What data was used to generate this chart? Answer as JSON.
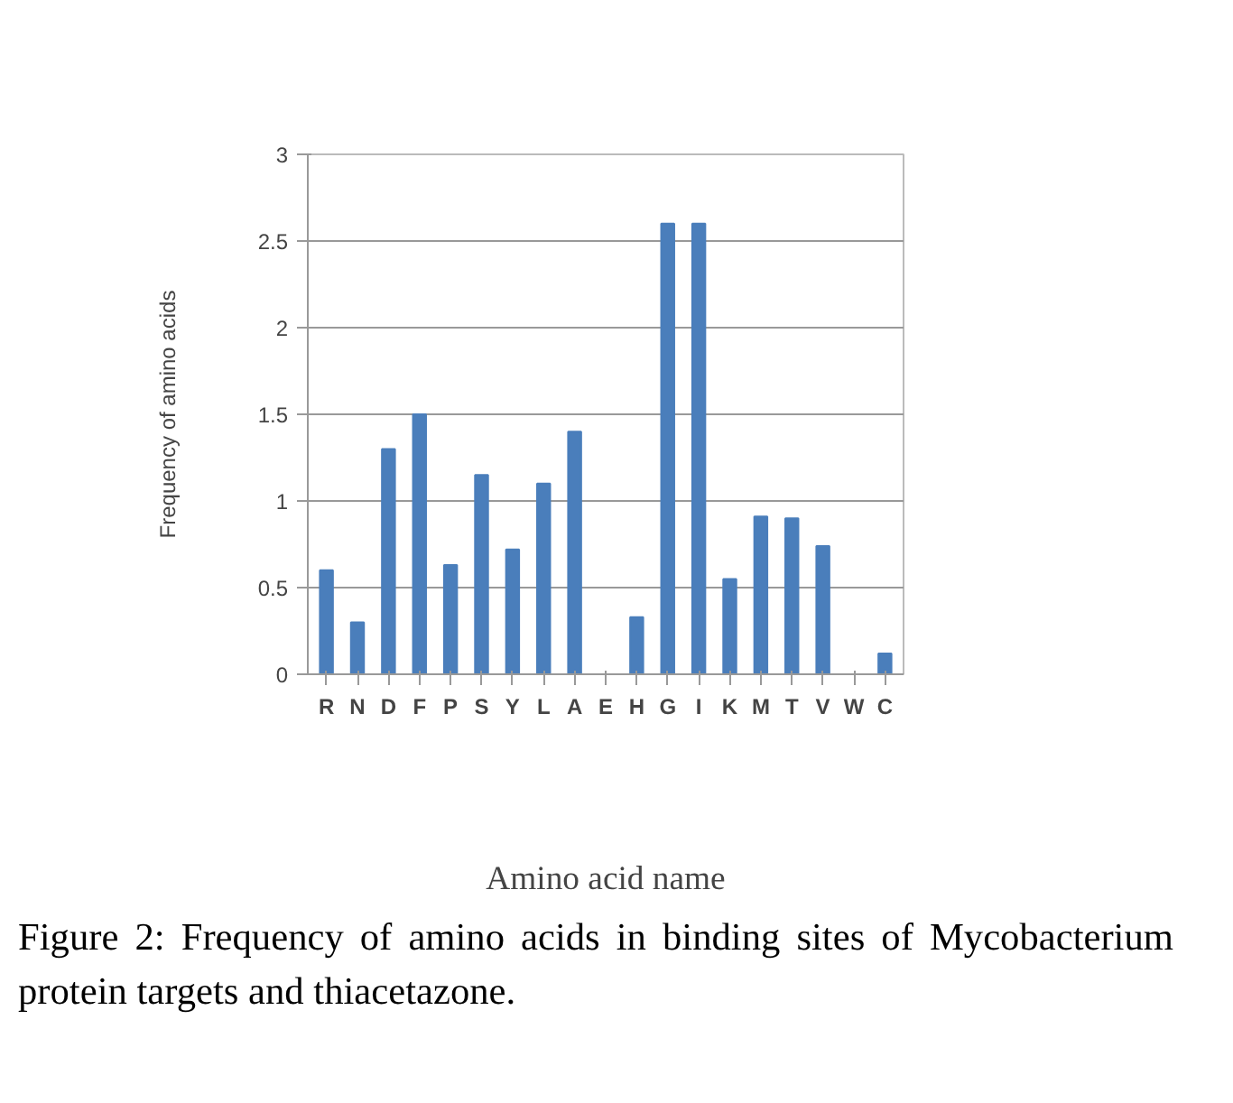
{
  "chart_data": {
    "type": "bar",
    "xlabel": "Amino acid name",
    "ylabel": "Frequency of amino acids",
    "categories": [
      "R",
      "N",
      "D",
      "F",
      "P",
      "S",
      "Y",
      "L",
      "A",
      "E",
      "H",
      "G",
      "I",
      "K",
      "M",
      "T",
      "V",
      "W",
      "C"
    ],
    "values": [
      0.6,
      0.3,
      1.3,
      1.5,
      0.63,
      1.15,
      0.72,
      1.1,
      1.4,
      0,
      0.33,
      2.6,
      2.6,
      0.55,
      0.91,
      0.9,
      0.74,
      0,
      0.12
    ],
    "color": "#4a7ebb",
    "ylim": [
      0,
      3
    ],
    "yticks": [
      0,
      0.5,
      1,
      1.5,
      2,
      2.5,
      3
    ],
    "grid": "y",
    "annotations": [
      "Figure 2: Frequency of amino acids in binding sites of Mycobacterium protein targets and thiacetazone."
    ]
  }
}
